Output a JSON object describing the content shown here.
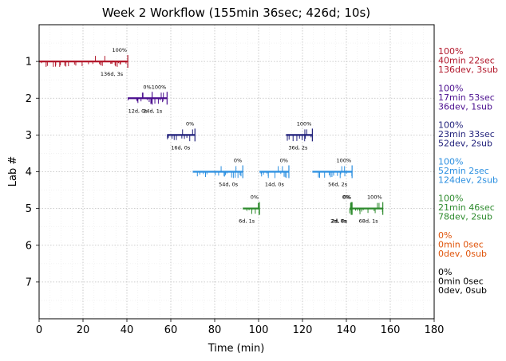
{
  "chart_data": {
    "type": "timeline",
    "title": "Week 2 Workflow (155min 36sec; 426d; 10s)",
    "xlabel": "Time (min)",
    "ylabel": "Lab #",
    "xlim": [
      0,
      180
    ],
    "ylim": [
      8,
      0
    ],
    "xticks": [
      0,
      20,
      40,
      60,
      80,
      100,
      120,
      140,
      160,
      180
    ],
    "yticks": [
      1,
      2,
      3,
      4,
      5,
      6,
      7
    ],
    "grid": true,
    "series": [
      {
        "lab": 1,
        "color": "#b2182b",
        "summary": [
          "100%",
          "40min 22sec",
          "136dev, 3sub"
        ],
        "segments": [
          {
            "start": 0,
            "end": 40.4,
            "top_label": "100%",
            "bottom_label": "136d, 3s"
          }
        ]
      },
      {
        "lab": 2,
        "color": "#4b0f8f",
        "summary": [
          "100%",
          "17min 53sec",
          "36dev, 1sub"
        ],
        "segments": [
          {
            "start": 40.4,
            "end": 51.5,
            "top_label": "0%",
            "bottom_label": "12d, 0s"
          },
          {
            "start": 51.5,
            "end": 58.3,
            "top_label": "100%",
            "bottom_label": "24d, 1s"
          }
        ]
      },
      {
        "lab": 3,
        "color": "#1f1f7a",
        "summary": [
          "100%",
          "23min 33sec",
          "52dev, 2sub"
        ],
        "segments": [
          {
            "start": 58.3,
            "end": 71.0,
            "top_label": "0%",
            "bottom_label": "16d, 0s"
          },
          {
            "start": 112.5,
            "end": 124.5,
            "top_label": "100%",
            "bottom_label": "36d, 2s"
          }
        ]
      },
      {
        "lab": 4,
        "color": "#2b8fe0",
        "summary": [
          "100%",
          "52min 2sec",
          "124dev, 2sub"
        ],
        "segments": [
          {
            "start": 70.0,
            "end": 92.8,
            "top_label": "0%",
            "bottom_label": "54d, 0s"
          },
          {
            "start": 100.4,
            "end": 113.8,
            "top_label": "0%",
            "bottom_label": "14d, 0s"
          },
          {
            "start": 124.5,
            "end": 142.6,
            "top_label": "100%",
            "bottom_label": "56d, 2s"
          }
        ]
      },
      {
        "lab": 5,
        "color": "#2e8b2e",
        "summary": [
          "100%",
          "21min 46sec",
          "78dev, 2sub"
        ],
        "segments": [
          {
            "start": 92.8,
            "end": 100.4,
            "top_label": "0%",
            "bottom_label": "6d, 1s"
          },
          {
            "start": 141.5,
            "end": 142.2,
            "top_label": "0%",
            "bottom_label": "2d, 0s"
          },
          {
            "start": 142.2,
            "end": 142.6,
            "top_label": "0%",
            "bottom_label": "2d, 0s"
          },
          {
            "start": 142.6,
            "end": 156.6,
            "top_label": "100%",
            "bottom_label": "68d, 1s"
          }
        ]
      },
      {
        "lab": 6,
        "color": "#e0540a",
        "summary": [
          "0%",
          "0min 0sec",
          "0dev, 0sub"
        ],
        "segments": []
      },
      {
        "lab": 7,
        "color": "#000000",
        "summary": [
          "0%",
          "0min 0sec",
          "0dev, 0sub"
        ],
        "segments": []
      }
    ]
  }
}
